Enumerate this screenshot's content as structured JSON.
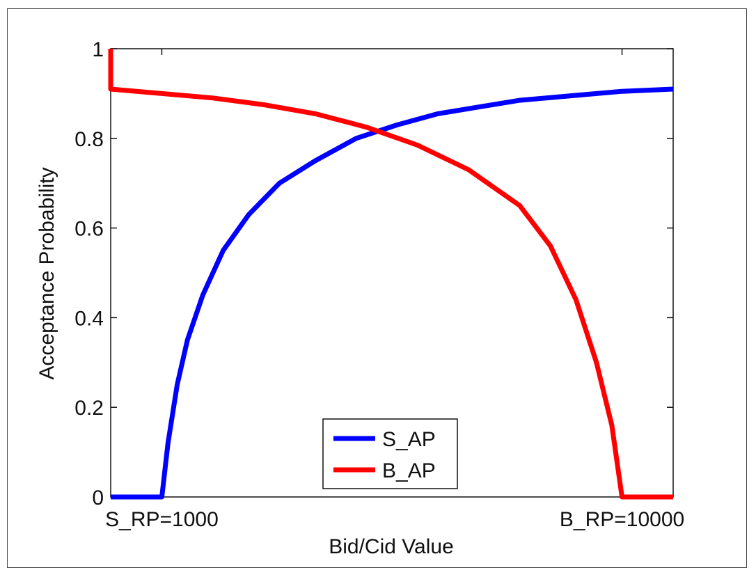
{
  "chart_data": {
    "type": "line",
    "title": "",
    "xlabel": "Bid/Cid Value",
    "ylabel": "Acceptance Probability",
    "xlim": [
      0,
      11000
    ],
    "ylim": [
      0,
      1
    ],
    "grid": false,
    "legend_position": "bottom-center",
    "y_ticks": [
      {
        "value": 0,
        "label": "0"
      },
      {
        "value": 0.2,
        "label": "0.2"
      },
      {
        "value": 0.4,
        "label": "0.4"
      },
      {
        "value": 0.6,
        "label": "0.6"
      },
      {
        "value": 0.8,
        "label": "0.8"
      },
      {
        "value": 1,
        "label": "1"
      }
    ],
    "x_ticks": [
      {
        "value": 1000,
        "label": "S_RP=1000"
      },
      {
        "value": 10000,
        "label": "B_RP=10000"
      }
    ],
    "series": [
      {
        "name": "S_AP",
        "color": "#0000ff",
        "points": [
          [
            0,
            0
          ],
          [
            1000,
            0
          ],
          [
            1120,
            0.12
          ],
          [
            1300,
            0.25
          ],
          [
            1500,
            0.35
          ],
          [
            1800,
            0.45
          ],
          [
            2200,
            0.55
          ],
          [
            2700,
            0.63
          ],
          [
            3300,
            0.7
          ],
          [
            4000,
            0.75
          ],
          [
            4800,
            0.8
          ],
          [
            5600,
            0.83
          ],
          [
            6400,
            0.855
          ],
          [
            7200,
            0.87
          ],
          [
            8000,
            0.885
          ],
          [
            9000,
            0.895
          ],
          [
            10000,
            0.905
          ],
          [
            11000,
            0.91
          ]
        ]
      },
      {
        "name": "B_AP",
        "color": "#ff0000",
        "points": [
          [
            0,
            1
          ],
          [
            0,
            0.91
          ],
          [
            1000,
            0.9
          ],
          [
            2000,
            0.89
          ],
          [
            3000,
            0.875
          ],
          [
            4000,
            0.855
          ],
          [
            5000,
            0.825
          ],
          [
            6000,
            0.785
          ],
          [
            7000,
            0.73
          ],
          [
            8000,
            0.65
          ],
          [
            8600,
            0.56
          ],
          [
            9100,
            0.44
          ],
          [
            9500,
            0.3
          ],
          [
            9800,
            0.16
          ],
          [
            10000,
            0
          ],
          [
            11000,
            0
          ]
        ]
      }
    ]
  }
}
